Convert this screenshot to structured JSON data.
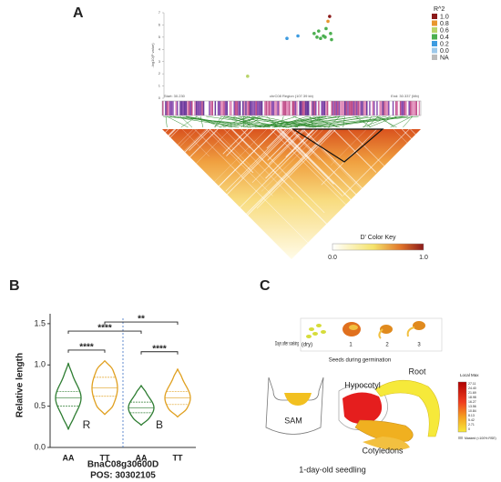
{
  "panel_labels": [
    "A",
    "B",
    "C"
  ],
  "chart_data": [
    {
      "type": "scatter",
      "y_label": "-log10(P value)",
      "legend_title": "R^2",
      "xlim": [
        30230,
        30337
      ],
      "ylim": [
        0,
        7
      ],
      "yticks": [
        0,
        1,
        2,
        3,
        4,
        5,
        6,
        7
      ],
      "xticks": [
        {
          "value": 30230,
          "label": "Start: 30.230"
        },
        {
          "value": 30283.5,
          "label": "chrC08 Region (107.39 kb)"
        },
        {
          "value": 30337,
          "label": "End: 30.337 (Mb)"
        }
      ],
      "series": [
        {
          "name": "1.0",
          "color": "#8b1a1a",
          "x": [
            30299.5
          ],
          "values": [
            6.7
          ]
        },
        {
          "name": "0.8",
          "color": "#e8962e",
          "x": [
            30298.8
          ],
          "values": [
            6.3
          ]
        },
        {
          "name": "0.6",
          "color": "#b9d46a",
          "x": [
            30265.1
          ],
          "values": [
            1.8
          ]
        },
        {
          "name": "0.4",
          "color": "#4caf50",
          "x": [
            30293.0,
            30294.2,
            30294.9,
            30295.7,
            30296.9,
            30297.6,
            30298.0,
            30299.9,
            30300.3
          ],
          "values": [
            5.3,
            5.0,
            5.5,
            4.9,
            5.1,
            5.0,
            5.7,
            5.3,
            4.8
          ]
        },
        {
          "name": "0.2",
          "color": "#3d9be0",
          "x": [
            30281.6,
            30286.2
          ],
          "values": [
            4.9,
            5.1
          ]
        },
        {
          "name": "0.0",
          "color": "#9ec9ea",
          "x": [],
          "values": []
        },
        {
          "name": "NA",
          "color": "#bbbbbb",
          "x": [],
          "values": []
        }
      ]
    },
    {
      "type": "violin",
      "y_label": "Relative length",
      "x_label": "BnaC08g30600D",
      "position_label": "POS:  30302105",
      "categories": [
        "AA",
        "TT",
        "AA",
        "TT"
      ],
      "colors": [
        "#2e7d32",
        "#e0a020",
        "#2e7d32",
        "#e0a020"
      ],
      "min": [
        0.22,
        0.4,
        0.27,
        0.37
      ],
      "q1": [
        0.5,
        0.62,
        0.42,
        0.52
      ],
      "median": [
        0.6,
        0.72,
        0.48,
        0.6
      ],
      "q3": [
        0.68,
        0.85,
        0.55,
        0.68
      ],
      "max": [
        1.02,
        1.05,
        0.75,
        0.95
      ],
      "ylim": [
        0,
        1.62
      ],
      "yticks": [
        {
          "value": 0,
          "label": "0.0"
        },
        {
          "value": 0.5,
          "label": "0.5"
        },
        {
          "value": 1,
          "label": "1.0"
        },
        {
          "value": 1.5,
          "label": "1.5"
        }
      ],
      "groups": [
        {
          "label": "R",
          "color": "#c0392b"
        },
        {
          "label": "B",
          "color": "#3a6fc4"
        }
      ],
      "significance": [
        {
          "from": 0,
          "to": 1,
          "y": 1.18,
          "label": "****"
        },
        {
          "from": 0,
          "to": 2,
          "y": 1.41,
          "label": "****"
        },
        {
          "from": 1,
          "to": 3,
          "y": 1.52,
          "label": "**"
        },
        {
          "from": 2,
          "to": 3,
          "y": 1.16,
          "label": "****"
        }
      ]
    }
  ],
  "ld_heatmap": {
    "color_key_title": "D' Color Key",
    "ticks": [
      {
        "value": 0,
        "label": "0.0"
      },
      {
        "value": 1,
        "label": "1.0"
      }
    ]
  },
  "seedling": {
    "time_label": "Days after soaking",
    "stages": [
      "(dry)",
      "1",
      "2",
      "3"
    ],
    "stages_caption": "Seeds during germination",
    "parts": {
      "sam": "SAM",
      "hypocotyl": "Hypocotyl",
      "root": "Root",
      "cotyledons": "Cotyledons"
    },
    "caption": "1-day-old seedling",
    "scale": {
      "title": "Local Max",
      "ticks": [
        "27.11",
        "24.40",
        "21.69",
        "18.98",
        "16.27",
        "13.56",
        "10.84",
        "8.13",
        "5.42",
        "2.71",
        "0"
      ],
      "masked": "Masked (<100% RSE)"
    }
  }
}
